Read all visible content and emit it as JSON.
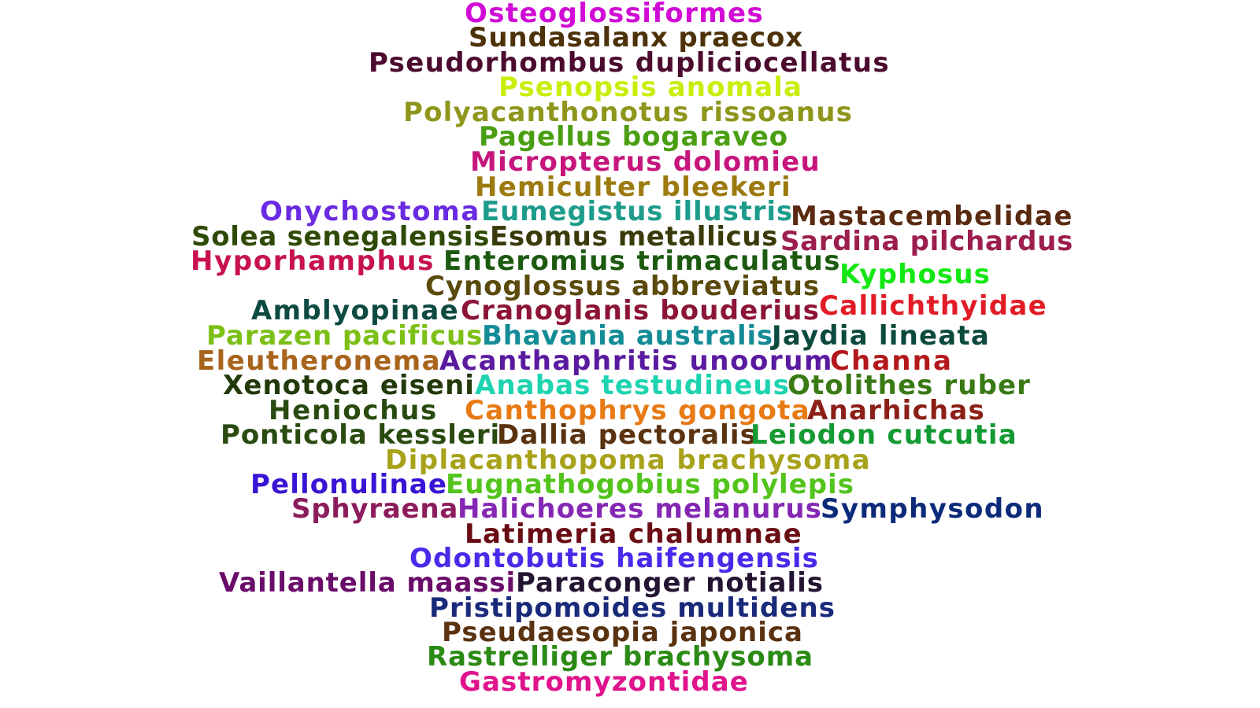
{
  "words": [
    {
      "text": "Osteoglossiformes",
      "color": "#d10ad6"
    },
    {
      "text": "Sundasalanx praecox",
      "color": "#4d3209"
    },
    {
      "text": "Pseudorhombus dupliciocellatus",
      "color": "#4b0a2e"
    },
    {
      "text": "Psenopsis anomala",
      "color": "#c8ef0c"
    },
    {
      "text": "Polyacanthonotus rissoanus",
      "color": "#8f961c"
    },
    {
      "text": "Pagellus bogaraveo",
      "color": "#4a9e12"
    },
    {
      "text": "Micropterus dolomieu",
      "color": "#c6167d"
    },
    {
      "text": "Hemiculter bleekeri",
      "color": "#9d7a0f"
    },
    {
      "text": "Onychostoma",
      "color": "#6a2be2"
    },
    {
      "text": "Eumegistus illustris",
      "color": "#1d9c8c"
    },
    {
      "text": "Mastacembelidae",
      "color": "#5a2a10"
    },
    {
      "text": "Solea senegalensis",
      "color": "#2f4a06"
    },
    {
      "text": "Esomus metallicus",
      "color": "#3a3a0a"
    },
    {
      "text": "Sardina pilchardus",
      "color": "#9c1e4e"
    },
    {
      "text": "Hyporhamphus",
      "color": "#c8124e"
    },
    {
      "text": "Enteromius trimaculatus",
      "color": "#1c5a10"
    },
    {
      "text": "Kyphosus",
      "color": "#14e814"
    },
    {
      "text": "Cynoglossus abbreviatus",
      "color": "#5a4a0c"
    },
    {
      "text": "Amblyopinae",
      "color": "#0d4a42"
    },
    {
      "text": "Cranoglanis bouderius",
      "color": "#8c1436"
    },
    {
      "text": "Callichthyidae",
      "color": "#e21c26"
    },
    {
      "text": "Parazen pacificus",
      "color": "#7cc016"
    },
    {
      "text": "Bhavania australis",
      "color": "#138c96"
    },
    {
      "text": "Jaydia lineata",
      "color": "#0c4a3e"
    },
    {
      "text": "Eleutheronema",
      "color": "#a8641c"
    },
    {
      "text": "Acanthaphritis unoorum",
      "color": "#5a1aa0"
    },
    {
      "text": "Channa",
      "color": "#b4181c"
    },
    {
      "text": "Xenotoca eiseni",
      "color": "#223a0a"
    },
    {
      "text": "Anabas testudineus",
      "color": "#1ed4b0"
    },
    {
      "text": "Otolithes ruber",
      "color": "#3a7a14"
    },
    {
      "text": "Heniochus",
      "color": "#2a4a10"
    },
    {
      "text": "Canthophrys gongota",
      "color": "#e87a14"
    },
    {
      "text": "Anarhichas",
      "color": "#8c2016"
    },
    {
      "text": "Ponticola kessleri",
      "color": "#2a4a10"
    },
    {
      "text": "Dallia pectoralis",
      "color": "#5a3210"
    },
    {
      "text": "Leiodon cutcutia",
      "color": "#149a32"
    },
    {
      "text": "Diplacanthopoma brachysoma",
      "color": "#a8a21a"
    },
    {
      "text": "Pellonulinae",
      "color": "#3a14d4"
    },
    {
      "text": "Eugnathogobius polylepis",
      "color": "#52c41c"
    },
    {
      "text": "Sphyraena",
      "color": "#8c1c5c"
    },
    {
      "text": "Halichoeres melanurus",
      "color": "#8428b4"
    },
    {
      "text": "Symphysodon",
      "color": "#0c2a7a"
    },
    {
      "text": "Latimeria chalumnae",
      "color": "#6a0c14"
    },
    {
      "text": "Odontobutis haifengensis",
      "color": "#4a2aea"
    },
    {
      "text": "Vaillantella maassi",
      "color": "#6a0c6a"
    },
    {
      "text": "Paraconger notialis",
      "color": "#241432"
    },
    {
      "text": "Pristipomoides multidens",
      "color": "#1a2a7a"
    },
    {
      "text": "Pseudaesopia japonica",
      "color": "#5a3210"
    },
    {
      "text": "Rastrelliger brachysoma",
      "color": "#2a8a14"
    },
    {
      "text": "Gastromyzontidae",
      "color": "#e0148c"
    }
  ]
}
